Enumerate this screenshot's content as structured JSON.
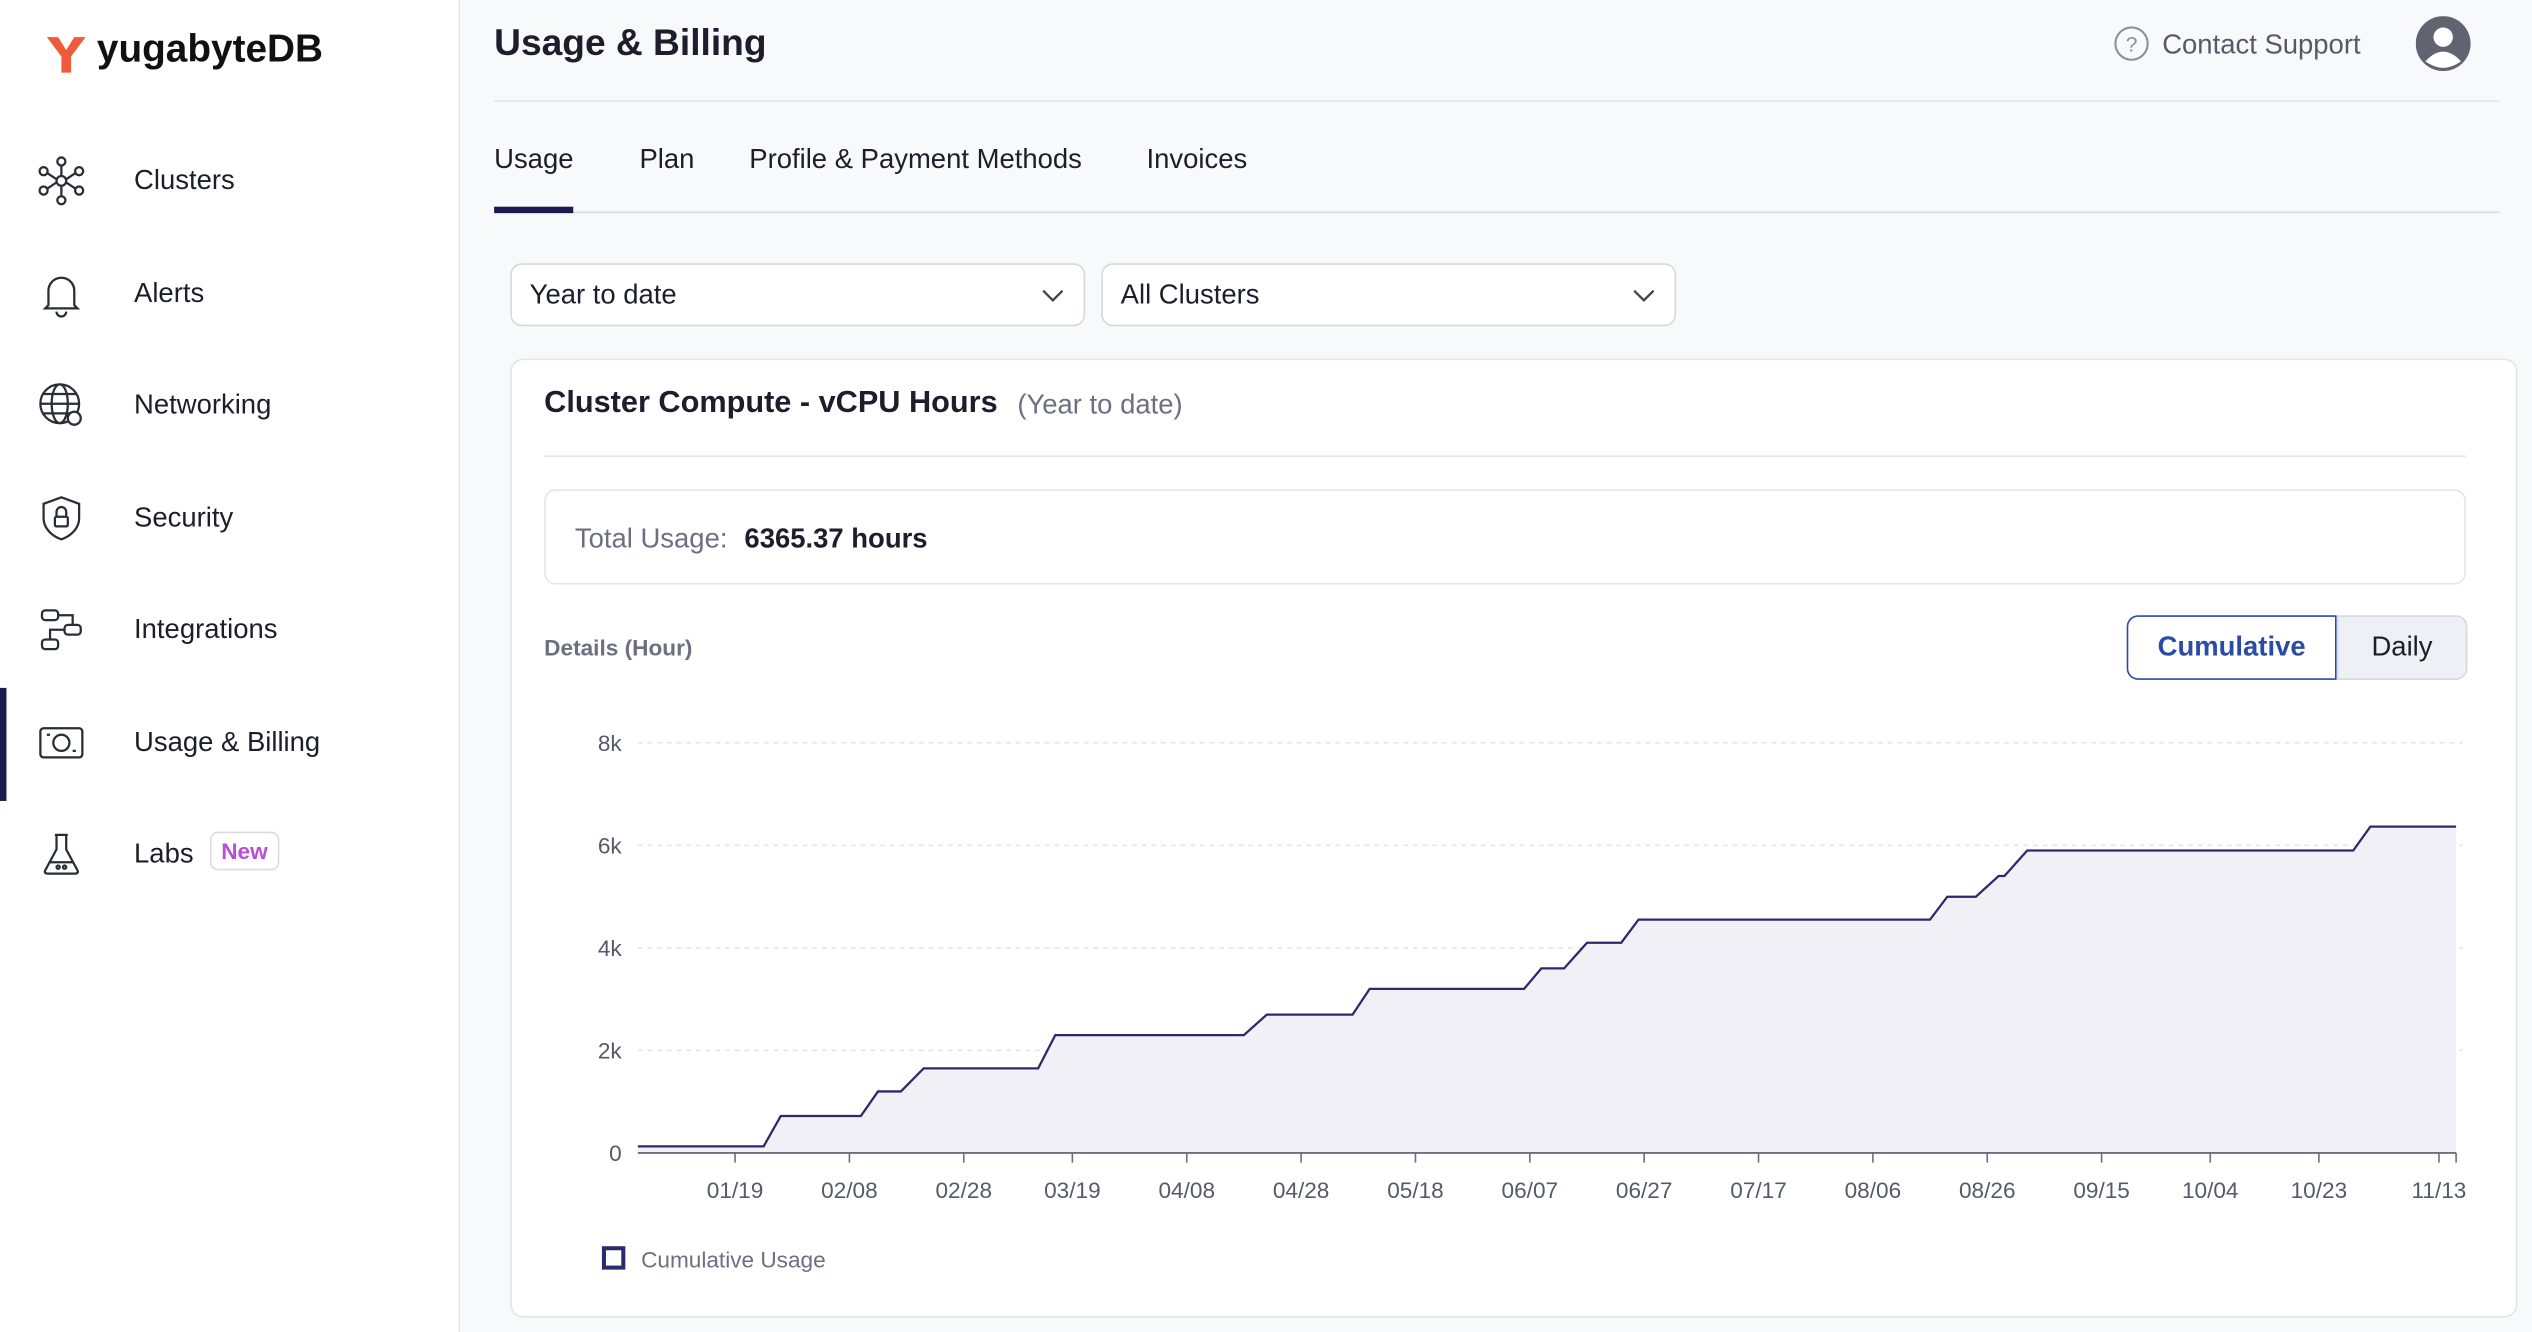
{
  "sidebar": {
    "logo": "yugabyteDB",
    "items": [
      {
        "label": "Clusters"
      },
      {
        "label": "Alerts"
      },
      {
        "label": "Networking"
      },
      {
        "label": "Security"
      },
      {
        "label": "Integrations"
      },
      {
        "label": "Usage & Billing"
      },
      {
        "label": "Labs",
        "badge": "New"
      }
    ]
  },
  "header": {
    "title": "Usage & Billing",
    "contact": "Contact Support"
  },
  "tabs": [
    "Usage",
    "Plan",
    "Profile & Payment Methods",
    "Invoices"
  ],
  "filters": [
    "Year to date",
    "All Clusters"
  ],
  "card": {
    "title": "Cluster Compute - vCPU Hours",
    "period": "(Year to date)",
    "total_label": "Total Usage:",
    "total_value": "6365.37 hours",
    "details_label": "Details (Hour)",
    "toggle": [
      "Cumulative",
      "Daily"
    ]
  },
  "chart_data": {
    "type": "line",
    "x": [
      "01/02",
      "01/24",
      "01/27",
      "02/10",
      "02/13",
      "02/17",
      "02/21",
      "03/13",
      "03/16",
      "04/18",
      "04/22",
      "05/07",
      "05/10",
      "06/06",
      "06/09",
      "06/13",
      "06/17",
      "06/23",
      "06/26",
      "08/16",
      "08/19",
      "08/24",
      "08/28",
      "08/29",
      "09/02",
      "10/29",
      "11/01",
      "11/16"
    ],
    "series": [
      {
        "name": "Cumulative Usage",
        "color": "#2b2a6b",
        "values": [
          130,
          130,
          720,
          720,
          1200,
          1200,
          1650,
          1650,
          2300,
          2300,
          2700,
          2700,
          3200,
          3200,
          3600,
          3600,
          4100,
          4100,
          4550,
          4550,
          5000,
          5000,
          5400,
          5400,
          5900,
          5900,
          6365,
          6365
        ]
      }
    ],
    "xlim": [
      "01/02",
      "11/16"
    ],
    "xticks": [
      "01/19",
      "02/08",
      "02/28",
      "03/19",
      "04/08",
      "04/28",
      "05/18",
      "06/07",
      "06/27",
      "07/17",
      "08/06",
      "08/26",
      "09/15",
      "10/04",
      "10/23",
      "11/13"
    ],
    "ylim": [
      0,
      8000
    ],
    "yticks": [
      0,
      {
        "value": 2000,
        "label": "2k"
      },
      {
        "value": 4000,
        "label": "4k"
      },
      {
        "value": 6000,
        "label": "6k"
      },
      {
        "value": 8000,
        "label": "8k"
      }
    ],
    "grid": true,
    "area": true,
    "area_color": "#f1f0f7"
  }
}
